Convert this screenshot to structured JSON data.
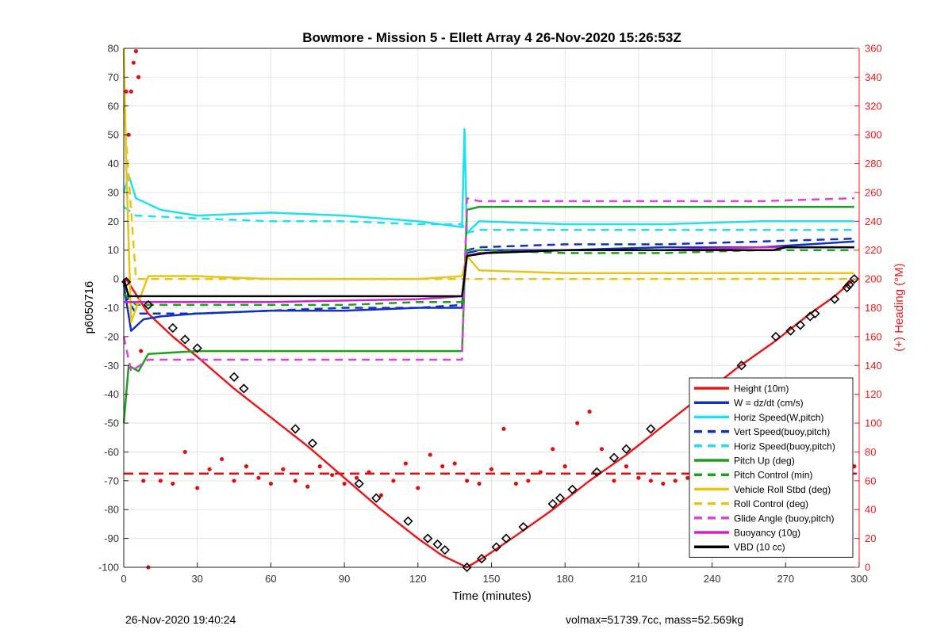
{
  "chart_data": {
    "type": "line",
    "title": "Bowmore - Mission 5 - Ellett Array 4 26-Nov-2020 15:26:53Z",
    "xlabel": "Time (minutes)",
    "ylabel": "p6050716",
    "y2label": "(+) Heading (°M)",
    "xlim": [
      0,
      300
    ],
    "ylim": [
      -100,
      80
    ],
    "y2lim": [
      0,
      360
    ],
    "xticks": [
      0,
      30,
      60,
      90,
      120,
      150,
      180,
      210,
      240,
      270,
      300
    ],
    "yticks": [
      80,
      70,
      60,
      50,
      40,
      30,
      20,
      10,
      0,
      -10,
      -20,
      -30,
      -40,
      -50,
      -60,
      -70,
      -80,
      -90,
      -100
    ],
    "y2ticks": [
      360,
      340,
      320,
      300,
      280,
      260,
      240,
      220,
      200,
      180,
      160,
      140,
      120,
      100,
      80,
      60,
      40,
      20,
      0
    ],
    "grid": true,
    "legend_position": "bottom-right",
    "series": [
      {
        "name": "Height (10m)",
        "color": "#e41a1c",
        "style": "solid",
        "x": [
          0,
          1,
          10,
          20,
          30,
          45,
          60,
          75,
          90,
          105,
          120,
          130,
          140,
          148,
          160,
          175,
          190,
          205,
          220,
          235,
          250,
          265,
          280,
          290,
          298
        ],
        "y": [
          -2,
          0,
          -12,
          -20,
          -27,
          -38,
          -48,
          -58,
          -69,
          -80,
          -90,
          -96,
          -100,
          -96,
          -89,
          -80,
          -70,
          -61,
          -51,
          -41,
          -31,
          -22,
          -12,
          -6,
          0
        ]
      },
      {
        "name": "W = dz/dt (cm/s)",
        "color": "#1030c0",
        "style": "solid",
        "x": [
          0,
          3,
          8,
          15,
          30,
          60,
          90,
          120,
          138,
          140,
          145,
          180,
          220,
          260,
          298
        ],
        "y": [
          -2,
          -18,
          -14,
          -13,
          -12,
          -11,
          -11,
          -10,
          -10,
          9,
          10,
          10,
          11,
          11,
          13
        ]
      },
      {
        "name": "Horiz Speed(W,pitch)",
        "color": "#20e0f0",
        "style": "solid",
        "x": [
          0,
          2,
          5,
          15,
          30,
          60,
          90,
          120,
          138,
          139,
          140,
          145,
          180,
          220,
          260,
          298
        ],
        "y": [
          30,
          36,
          28,
          24,
          22,
          23,
          22,
          20,
          18,
          52,
          16,
          20,
          19,
          19,
          20,
          20
        ]
      },
      {
        "name": "Vert Speed(buoy,pitch)",
        "color": "#1030c0",
        "style": "dashed",
        "x": [
          0,
          5,
          30,
          60,
          90,
          120,
          138,
          140,
          145,
          180,
          220,
          260,
          298
        ],
        "y": [
          -5,
          -12,
          -12,
          -11,
          -10,
          -10,
          -9,
          10,
          11,
          12,
          12,
          13,
          14
        ]
      },
      {
        "name": "Horiz Speed(buoy,pitch)",
        "color": "#20e0f0",
        "style": "dashed",
        "x": [
          0,
          5,
          30,
          60,
          90,
          120,
          138,
          140,
          145,
          180,
          220,
          260,
          298
        ],
        "y": [
          25,
          22,
          21,
          20,
          20,
          19,
          19,
          16,
          17,
          17,
          17,
          17,
          17
        ]
      },
      {
        "name": "Pitch Up (deg)",
        "color": "#1ea01e",
        "style": "solid",
        "x": [
          0,
          2,
          6,
          10,
          30,
          60,
          90,
          120,
          138,
          140,
          145,
          180,
          220,
          260,
          298
        ],
        "y": [
          -50,
          -30,
          -32,
          -26,
          -25,
          -25,
          -25,
          -25,
          -25,
          24,
          25,
          25,
          25,
          25,
          25
        ]
      },
      {
        "name": "Pitch Control (min)",
        "color": "#1ea01e",
        "style": "dashed",
        "x": [
          0,
          5,
          30,
          60,
          90,
          120,
          138,
          140,
          145,
          180,
          220,
          260,
          298
        ],
        "y": [
          -5,
          -9,
          -9,
          -9,
          -9,
          -8,
          -8,
          10,
          10,
          9,
          9,
          10,
          10
        ]
      },
      {
        "name": "Vehicle Roll Stbd (deg)",
        "color": "#e6c614",
        "style": "solid",
        "x": [
          0,
          1,
          3,
          6,
          10,
          30,
          60,
          90,
          120,
          138,
          140,
          145,
          180,
          220,
          260,
          298
        ],
        "y": [
          80,
          40,
          -15,
          -8,
          1,
          1,
          0,
          0,
          0,
          1,
          8,
          3,
          2,
          2,
          2,
          2
        ]
      },
      {
        "name": "Roll Control (deg)",
        "color": "#e6c614",
        "style": "dashed",
        "x": [
          0,
          5,
          30,
          60,
          90,
          120,
          138,
          140,
          145,
          180,
          220,
          260,
          298
        ],
        "y": [
          60,
          0,
          0,
          0,
          0,
          0,
          0,
          0,
          0,
          0,
          0,
          0,
          0
        ]
      },
      {
        "name": "Glide Angle (buoy,pitch)",
        "color": "#e040e0",
        "style": "dashed",
        "x": [
          0,
          3,
          10,
          30,
          60,
          90,
          120,
          138,
          140,
          145,
          180,
          220,
          260,
          298
        ],
        "y": [
          -20,
          -32,
          -28,
          -28,
          -28,
          -28,
          -28,
          -28,
          28,
          27,
          27,
          27,
          27,
          28
        ]
      },
      {
        "name": "Buoyancy (10g)",
        "color": "#d020d0",
        "style": "solid",
        "x": [
          0,
          5,
          60,
          120,
          138,
          140,
          145,
          180,
          220,
          260,
          298
        ],
        "y": [
          -8,
          -8,
          -8,
          -7,
          -6,
          8,
          9,
          10,
          10,
          11,
          11
        ]
      },
      {
        "name": "VBD (10 cc)",
        "color": "#000000",
        "style": "solid",
        "x": [
          0,
          2,
          5,
          60,
          120,
          138,
          140,
          148,
          180,
          220,
          265,
          270,
          298
        ],
        "y": [
          0,
          -6,
          -6,
          -6,
          -6,
          -6,
          8,
          9,
          10,
          10,
          10,
          11,
          11
        ]
      }
    ],
    "heading_dots": {
      "axis": "y2",
      "color": "#dd1111",
      "x": [
        1,
        2,
        3,
        4,
        5,
        6,
        7,
        8,
        10,
        15,
        20,
        25,
        30,
        35,
        40,
        45,
        50,
        55,
        60,
        65,
        70,
        75,
        80,
        85,
        90,
        95,
        100,
        105,
        110,
        115,
        120,
        125,
        130,
        135,
        140,
        145,
        150,
        155,
        160,
        165,
        170,
        175,
        180,
        185,
        190,
        195,
        200,
        205,
        210,
        215,
        220,
        225,
        230,
        235,
        240,
        245,
        250,
        255,
        260,
        265,
        270,
        275,
        280,
        285,
        290,
        295,
        298
      ],
      "y": [
        330,
        300,
        330,
        350,
        358,
        340,
        150,
        60,
        0,
        60,
        58,
        80,
        55,
        68,
        75,
        60,
        70,
        62,
        58,
        68,
        60,
        56,
        70,
        64,
        58,
        62,
        66,
        50,
        60,
        72,
        55,
        78,
        70,
        72,
        60,
        58,
        68,
        96,
        58,
        60,
        66,
        82,
        70,
        100,
        108,
        82,
        60,
        70,
        62,
        60,
        58,
        60,
        62,
        56,
        58,
        60,
        54,
        72,
        68,
        66,
        60,
        58,
        62,
        56,
        70,
        86,
        70
      ]
    },
    "heading_reference": {
      "axis": "y2",
      "color": "#dd1111",
      "style": "dashed",
      "value": 65
    },
    "waypoint_markers": {
      "color": "#000000",
      "x": [
        1,
        10,
        20,
        25,
        30,
        45,
        49,
        70,
        77,
        96,
        103,
        116,
        124,
        128,
        131,
        140,
        146,
        152,
        156,
        163,
        175,
        178,
        183,
        193,
        200,
        205,
        215,
        233,
        243,
        252,
        266,
        272,
        276,
        280,
        282,
        290,
        295,
        296,
        298
      ],
      "y": [
        -1,
        -9,
        -17,
        -21,
        -24,
        -34,
        -38,
        -52,
        -57,
        -71,
        -76,
        -84,
        -90,
        -92,
        -94,
        -100,
        -97,
        -93,
        -90,
        -86,
        -78,
        -76,
        -73,
        -67,
        -62,
        -59,
        -52,
        -42,
        -36,
        -30,
        -20,
        -18,
        -16,
        -13,
        -12,
        -7,
        -3,
        -2,
        0
      ]
    }
  },
  "footer": {
    "left": "26-Nov-2020 19:40:24",
    "right": "volmax=51739.7cc, mass=52.569kg"
  }
}
